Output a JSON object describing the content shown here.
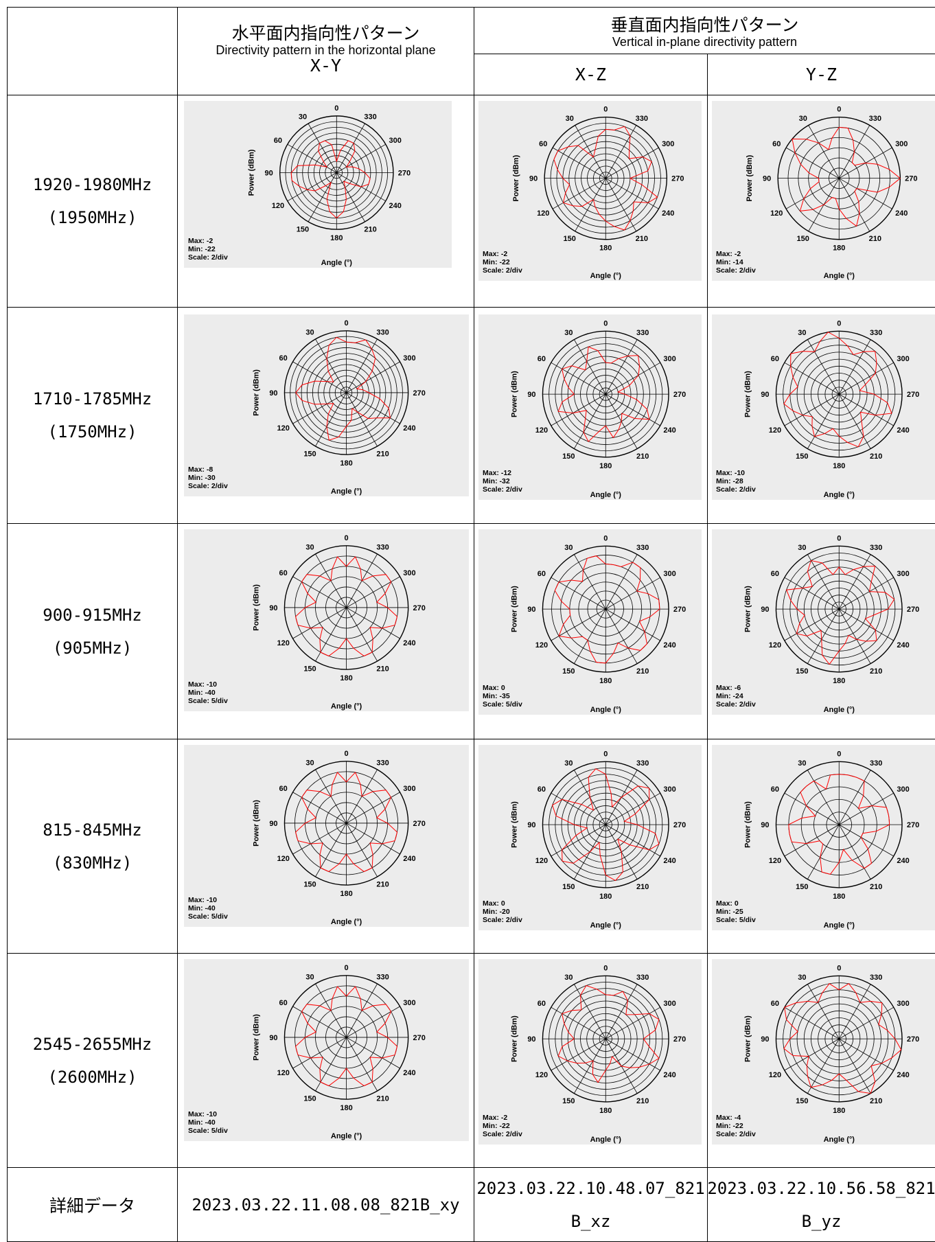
{
  "header": {
    "horizontal_jp": "水平面内指向性パターン",
    "horizontal_en": "Directivity pattern in the horizontal plane",
    "horizontal_plane": "X-Y",
    "vertical_jp": "垂直面内指向性パターン",
    "vertical_en": "Vertical in-plane directivity pattern",
    "plane_xz": "X-Z",
    "plane_yz": "Y-Z"
  },
  "rows": [
    {
      "band": "1920-1980MHz",
      "center": "(1950MHz)"
    },
    {
      "band": "1710-1785MHz",
      "center": "(1750MHz)"
    },
    {
      "band": "900-915MHz",
      "center": "(905MHz)"
    },
    {
      "band": "815-845MHz",
      "center": "(830MHz)"
    },
    {
      "band": "2545-2655MHz",
      "center": "(2600MHz)"
    }
  ],
  "footer": {
    "label": "詳細データ",
    "xy_file": "2023.03.22.11.08.08_821B_xy",
    "xz_file_line1": "2023.03.22.10.48.07_821",
    "xz_file_line2": "B_xz",
    "yz_file_line1": "2023.03.22.10.56.58_821",
    "yz_file_line2": "B_yz"
  },
  "chart_common": {
    "angle_ticks": [
      "0",
      "30",
      "60",
      "90",
      "120",
      "150",
      "180",
      "210",
      "240",
      "270",
      "300",
      "330"
    ],
    "radial_label": "Power (dBm)",
    "angular_label": "Angle (°)",
    "grid_color": "#000000",
    "trace_color": "#ff0000",
    "background": "#ececec"
  },
  "chart_data": [
    {
      "type": "polar",
      "plane": "X-Y",
      "row": 0,
      "max": "Max: -2",
      "min": "Min: -22",
      "scale": "Scale: 2/div",
      "rings": 10,
      "r": [
        2,
        5,
        6,
        6,
        5,
        3,
        2,
        4,
        7,
        8,
        8,
        7,
        6,
        5,
        3,
        2,
        5,
        7,
        8,
        7,
        5,
        3,
        2,
        3,
        5,
        6,
        6,
        5,
        4,
        3,
        2,
        3,
        5,
        6,
        6,
        4
      ]
    },
    {
      "type": "polar",
      "plane": "X-Z",
      "row": 0,
      "max": "Max: -2",
      "min": "Min: -22",
      "scale": "Scale: 2/div",
      "rings": 10,
      "r": [
        8,
        7,
        5,
        4,
        7,
        8,
        9,
        9,
        8,
        7,
        6,
        7,
        8,
        7,
        6,
        4,
        5,
        6,
        7,
        8,
        9,
        8,
        7,
        6,
        8,
        9,
        6,
        4,
        7,
        8,
        7,
        5,
        6,
        8,
        9,
        8
      ]
    },
    {
      "type": "polar",
      "plane": "Y-Z",
      "row": 0,
      "max": "Max: -2",
      "min": "Min: -14",
      "scale": "Scale: 2/div",
      "rings": 6,
      "r": [
        5,
        4,
        3,
        4,
        5,
        6,
        5,
        4,
        3,
        2,
        2,
        3,
        4,
        5,
        4,
        3,
        2,
        2,
        3,
        4,
        5,
        4,
        3,
        2,
        2,
        4,
        5,
        6,
        5,
        4,
        3,
        2,
        2,
        3,
        4,
        5
      ]
    },
    {
      "type": "polar",
      "plane": "X-Y",
      "row": 1,
      "max": "Max: -8",
      "min": "Min: -30",
      "scale": "Scale: 2/div",
      "rings": 11,
      "r": [
        9,
        10,
        9,
        7,
        5,
        3,
        4,
        6,
        8,
        9,
        8,
        6,
        4,
        3,
        5,
        7,
        9,
        8,
        6,
        5,
        3,
        4,
        6,
        7,
        9,
        8,
        6,
        4,
        3,
        2,
        4,
        6,
        8,
        9,
        10,
        9
      ]
    },
    {
      "type": "polar",
      "plane": "X-Z",
      "row": 1,
      "max": "Max: -12",
      "min": "Min: -32",
      "scale": "Scale: 2/div",
      "rings": 10,
      "r": [
        5,
        7,
        8,
        6,
        5,
        7,
        8,
        7,
        6,
        5,
        7,
        8,
        6,
        4,
        5,
        7,
        8,
        6,
        5,
        7,
        6,
        5,
        4,
        6,
        8,
        7,
        5,
        3,
        2,
        4,
        6,
        7,
        8,
        7,
        6,
        5
      ]
    },
    {
      "type": "polar",
      "plane": "Y-Z",
      "row": 1,
      "max": "Max: -10",
      "min": "Min: -28",
      "scale": "Scale: 2/div",
      "rings": 9,
      "r": [
        8,
        9,
        8,
        7,
        8,
        9,
        8,
        7,
        6,
        7,
        8,
        7,
        6,
        5,
        6,
        7,
        6,
        5,
        6,
        7,
        8,
        7,
        5,
        4,
        6,
        8,
        7,
        5,
        3,
        4,
        6,
        7,
        8,
        7,
        6,
        7
      ]
    },
    {
      "type": "polar",
      "plane": "X-Y",
      "row": 2,
      "max": "Max: -10",
      "min": "Min: -40",
      "scale": "Scale: 5/div",
      "rings": 6,
      "r": [
        4,
        5,
        4,
        3,
        4,
        5,
        5,
        4,
        3,
        4,
        5,
        5,
        4,
        3,
        4,
        5,
        5,
        4,
        3,
        4,
        5,
        5,
        4,
        3,
        4,
        5,
        5,
        4,
        3,
        4,
        5,
        5,
        4,
        3,
        4,
        5
      ]
    },
    {
      "type": "polar",
      "plane": "X-Z",
      "row": 2,
      "max": "Max: 0",
      "min": "Min: -35",
      "scale": "Scale: 5/div",
      "rings": 7,
      "r": [
        5,
        6,
        6,
        5,
        4,
        5,
        6,
        6,
        5,
        4,
        4,
        5,
        6,
        5,
        4,
        4,
        5,
        6,
        6,
        5,
        4,
        5,
        6,
        6,
        5,
        4,
        5,
        6,
        6,
        5,
        4,
        5,
        6,
        6,
        5,
        5
      ]
    },
    {
      "type": "polar",
      "plane": "Y-Z",
      "row": 2,
      "max": "Max: -6",
      "min": "Min: -24",
      "scale": "Scale: 2/div",
      "rings": 9,
      "r": [
        6,
        5,
        7,
        8,
        7,
        5,
        6,
        8,
        7,
        6,
        5,
        6,
        7,
        6,
        4,
        5,
        7,
        8,
        6,
        5,
        4,
        5,
        6,
        7,
        6,
        4,
        5,
        7,
        8,
        7,
        5,
        6,
        8,
        7,
        6,
        5
      ]
    },
    {
      "type": "polar",
      "plane": "X-Y",
      "row": 3,
      "max": "Max: -10",
      "min": "Min: -40",
      "scale": "Scale: 5/div",
      "rings": 6,
      "r": [
        4,
        5,
        4,
        3,
        4,
        5,
        5,
        4,
        3,
        4,
        5,
        5,
        4,
        3,
        4,
        5,
        5,
        4,
        3,
        4,
        5,
        5,
        4,
        3,
        4,
        5,
        5,
        4,
        3,
        4,
        5,
        5,
        4,
        3,
        4,
        5
      ]
    },
    {
      "type": "polar",
      "plane": "X-Z",
      "row": 3,
      "max": "Max: 0",
      "min": "Min: -20",
      "scale": "Scale: 2/div",
      "rings": 10,
      "r": [
        8,
        9,
        8,
        5,
        3,
        5,
        8,
        9,
        8,
        5,
        3,
        5,
        8,
        9,
        8,
        5,
        3,
        5,
        8,
        9,
        8,
        5,
        3,
        5,
        8,
        9,
        8,
        5,
        3,
        5,
        8,
        9,
        8,
        5,
        3,
        5
      ]
    },
    {
      "type": "polar",
      "plane": "Y-Z",
      "row": 3,
      "max": "Max: 0",
      "min": "Min: -25",
      "scale": "Scale: 5/div",
      "rings": 5,
      "r": [
        4,
        4,
        3,
        4,
        4,
        4,
        3,
        2,
        3,
        4,
        4,
        4,
        3,
        2,
        2,
        3,
        4,
        4,
        3,
        2,
        3,
        4,
        4,
        3,
        2,
        2,
        3,
        4,
        4,
        4,
        3,
        2,
        3,
        4,
        4,
        4
      ]
    },
    {
      "type": "polar",
      "plane": "X-Y",
      "row": 4,
      "max": "Max: -10",
      "min": "Min: -40",
      "scale": "Scale: 5/div",
      "rings": 6,
      "r": [
        4,
        5,
        4,
        3,
        4,
        5,
        5,
        4,
        3,
        4,
        5,
        5,
        4,
        3,
        4,
        5,
        5,
        4,
        3,
        4,
        5,
        5,
        4,
        3,
        4,
        5,
        5,
        4,
        3,
        4,
        5,
        5,
        4,
        3,
        4,
        5
      ]
    },
    {
      "type": "polar",
      "plane": "X-Z",
      "row": 4,
      "max": "Max: -2",
      "min": "Min: -22",
      "scale": "Scale: 2/div",
      "rings": 10,
      "r": [
        7,
        8,
        9,
        8,
        6,
        7,
        8,
        7,
        6,
        5,
        7,
        8,
        7,
        6,
        5,
        4,
        6,
        7,
        5,
        4,
        3,
        5,
        6,
        7,
        8,
        9,
        7,
        6,
        8,
        9,
        8,
        6,
        5,
        7,
        8,
        7
      ]
    },
    {
      "type": "polar",
      "plane": "Y-Z",
      "row": 4,
      "max": "Max: -4",
      "min": "Min: -22",
      "scale": "Scale: 2/div",
      "rings": 9,
      "r": [
        7,
        8,
        7,
        6,
        7,
        8,
        9,
        8,
        6,
        7,
        8,
        7,
        5,
        6,
        7,
        8,
        7,
        6,
        5,
        6,
        8,
        9,
        8,
        6,
        7,
        8,
        9,
        8,
        7,
        6,
        7,
        8,
        7,
        6,
        7,
        8
      ]
    }
  ]
}
